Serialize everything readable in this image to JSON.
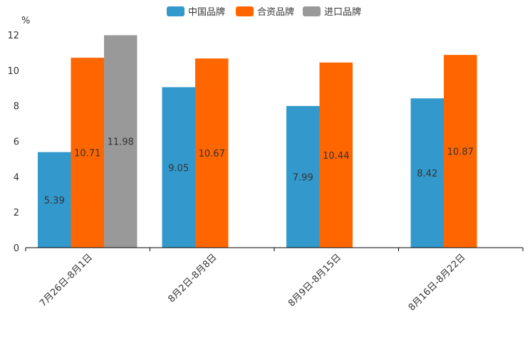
{
  "chart_data": {
    "type": "bar",
    "unit_label": "%",
    "ylim": [
      0,
      12
    ],
    "yticks": [
      0,
      2,
      4,
      6,
      8,
      10,
      12
    ],
    "categories": [
      "7月26日-8月1日",
      "8月2日-8月8日",
      "8月9日-8月15日",
      "8月16日-8月22日"
    ],
    "series": [
      {
        "name": "中国品牌",
        "color": "#3399CC",
        "values": [
          5.39,
          9.05,
          7.99,
          8.42
        ]
      },
      {
        "name": "合资品牌",
        "color": "#FF6600",
        "values": [
          10.71,
          10.67,
          10.44,
          10.87
        ]
      },
      {
        "name": "进口品牌",
        "color": "#999999",
        "values": [
          11.98,
          null,
          null,
          null
        ]
      }
    ],
    "legend_position": "top-center"
  }
}
